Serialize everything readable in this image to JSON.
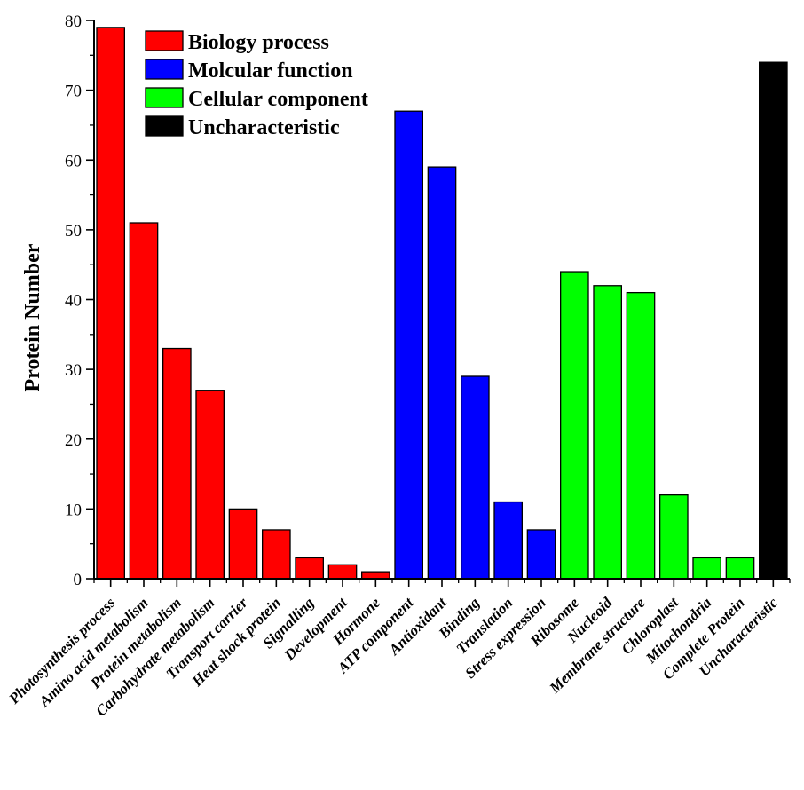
{
  "chart_data": {
    "type": "bar",
    "title": "",
    "xlabel": "",
    "ylabel": "Protein Number",
    "ylim": [
      0,
      80
    ],
    "yticks": [
      0,
      10,
      20,
      30,
      40,
      50,
      60,
      70,
      80
    ],
    "grid": false,
    "legend_position": "top-left",
    "categories": [
      "Photosynthesis process",
      "Amino acid metabolism",
      "Protein metabolism",
      "Carbohydrate metabolism",
      "Transport carrier",
      "Heat shock protein",
      "Signalling",
      "Development",
      "Hormone",
      "ATP component",
      "Antioxidant",
      "Binding",
      "Translation",
      "Stress expression",
      "Ribosome",
      "Nucleoid",
      "Membrane structure",
      "Chloroplast",
      "Mitochondria",
      "Complete Protein",
      "Uncharacteristic"
    ],
    "values": [
      79,
      51,
      33,
      27,
      10,
      7,
      3,
      2,
      1,
      67,
      59,
      29,
      11,
      7,
      44,
      42,
      41,
      12,
      3,
      3,
      74
    ],
    "groups": [
      0,
      0,
      0,
      0,
      0,
      0,
      0,
      0,
      0,
      1,
      1,
      1,
      1,
      1,
      2,
      2,
      2,
      2,
      2,
      2,
      3
    ],
    "legend": [
      {
        "name": "Biology process",
        "color": "#ff0000"
      },
      {
        "name": "Molcular function",
        "color": "#0000ff"
      },
      {
        "name": "Cellular component",
        "color": "#00ff00"
      },
      {
        "name": "Uncharacteristic",
        "color": "#000000"
      }
    ]
  }
}
